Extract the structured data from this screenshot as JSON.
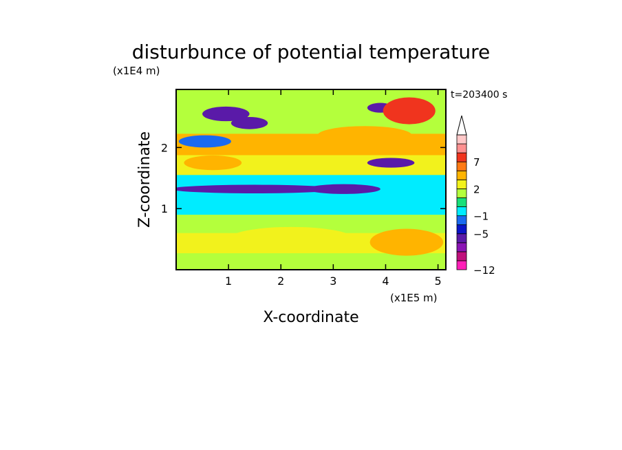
{
  "chart_data": {
    "type": "heatmap",
    "title": "disturbunce of potential temperature",
    "xlabel": "X-coordinate",
    "ylabel": "Z-coordinate",
    "x_unit": "(x1E5 m)",
    "y_unit": "(x1E4 m)",
    "time_label": "t=203400 s",
    "xlim": [
      0,
      5.15
    ],
    "ylim": [
      0,
      2.95
    ],
    "x_ticks": [
      1,
      2,
      3,
      4,
      5
    ],
    "y_ticks": [
      1,
      2
    ],
    "colorbar": {
      "levels": [
        -12,
        -11,
        -9,
        -7,
        -5,
        -3,
        -1,
        0,
        1,
        2,
        3,
        5,
        7,
        9,
        11
      ],
      "labels": [
        "-12",
        "-5",
        "-1",
        "2",
        "7"
      ],
      "label_levels": [
        -12,
        -5,
        -1,
        2,
        7
      ],
      "colors": [
        "#ff1fb8",
        "#c0107c",
        "#8a14b4",
        "#5a1aa8",
        "#0a14c8",
        "#1a6af0",
        "#00ecff",
        "#18e07a",
        "#b4ff3c",
        "#f2f21c",
        "#ffb400",
        "#ff7a14",
        "#f0341e",
        "#ff9090",
        "#ffc8c8"
      ],
      "extend": "max"
    },
    "features": [
      {
        "x": 0.95,
        "z": 2.55,
        "value": -7
      },
      {
        "x": 1.4,
        "z": 2.4,
        "value": -6
      },
      {
        "x": 0.55,
        "z": 2.1,
        "value": -3
      },
      {
        "x": 3.9,
        "z": 2.65,
        "value": -6
      },
      {
        "x": 4.45,
        "z": 2.6,
        "value": 7
      },
      {
        "x": 3.6,
        "z": 2.2,
        "value": 4
      },
      {
        "x": 0.7,
        "z": 1.75,
        "value": 4
      },
      {
        "x": 4.1,
        "z": 1.75,
        "value": -6
      },
      {
        "x": 1.5,
        "z": 1.32,
        "value": -6
      },
      {
        "x": 3.2,
        "z": 1.32,
        "value": -6
      },
      {
        "x": 2.8,
        "z": 1.05,
        "value": -1
      },
      {
        "x": 4.4,
        "z": 0.45,
        "value": 3
      },
      {
        "x": 2.2,
        "z": 0.5,
        "value": 2
      }
    ]
  }
}
